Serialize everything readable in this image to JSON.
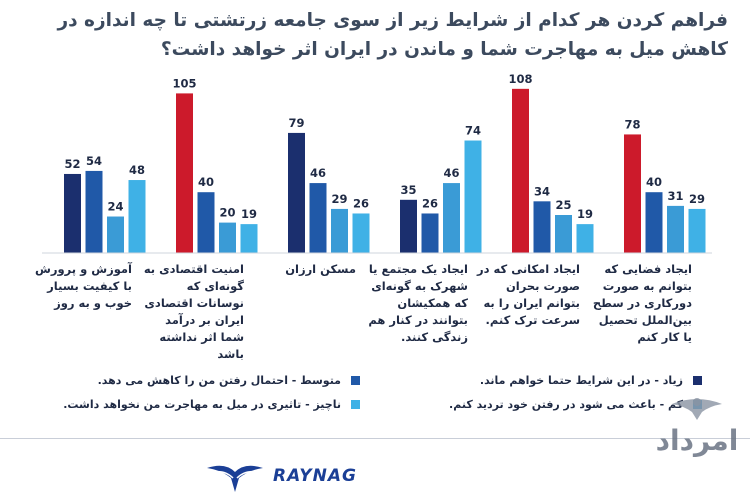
{
  "title": "فراهم کردن هر کدام از شرایط زیر از سوی جامعه زرتشتی تا چه اندازه در کاهش میل به مهاجرت شما و ماندن در ایران اثر خواهد داشت؟",
  "colors": {
    "red": "#cc1a2b",
    "navy": "#1b2f6e",
    "blue": "#2059a8",
    "medium": "#3a9bd6",
    "light": "#3fb1e6",
    "text": "#1f2a44",
    "logo_blue": "#1b3f96"
  },
  "chart_data": {
    "type": "bar",
    "categories": [
      "آموزش و پرورش با کیفیت بسیار خوب و به روز",
      "امنیت اقتصادی به گونه‌ای که نوسانات اقتصادی ایران بر درآمد شما اثر نداشته باشد",
      "مسکن ارزان",
      "ایجاد یک مجتمع یا شهرک به گونه‌ای که همکیشان بتوانند در کنار هم زندگی کنند.",
      "ایجاد امکانی که در صورت بحران بتوانم ایران را به سرعت ترک کنم.",
      "ایجاد فضایی که بتوانم به صورت دورکاری در سطح بین‌الملل تحصیل یا کار کنم"
    ],
    "series": [
      {
        "name": "زیاد - در این شرایط حتما خواهم ماند.",
        "values": [
          52,
          105,
          79,
          35,
          108,
          78
        ]
      },
      {
        "name": "متوسط - احتمال رفتن من را کاهش می دهد.",
        "values": [
          54,
          40,
          46,
          26,
          34,
          40
        ]
      },
      {
        "name": "کم - باعث می شود در رفتن خود تردید کنم.",
        "values": [
          24,
          20,
          29,
          46,
          25,
          31
        ]
      },
      {
        "name": "ناچیز - تاثیری در میل به مهاجرت من نخواهد داشت.",
        "values": [
          48,
          19,
          26,
          74,
          19,
          29
        ]
      }
    ],
    "highlighted_max": [
      false,
      true,
      false,
      false,
      true,
      true
    ],
    "ylim": [
      0,
      120
    ],
    "grid": false,
    "legend_position": "bottom"
  },
  "logos": {
    "raynag": "RAYNAG",
    "amordad": "امرداد"
  }
}
